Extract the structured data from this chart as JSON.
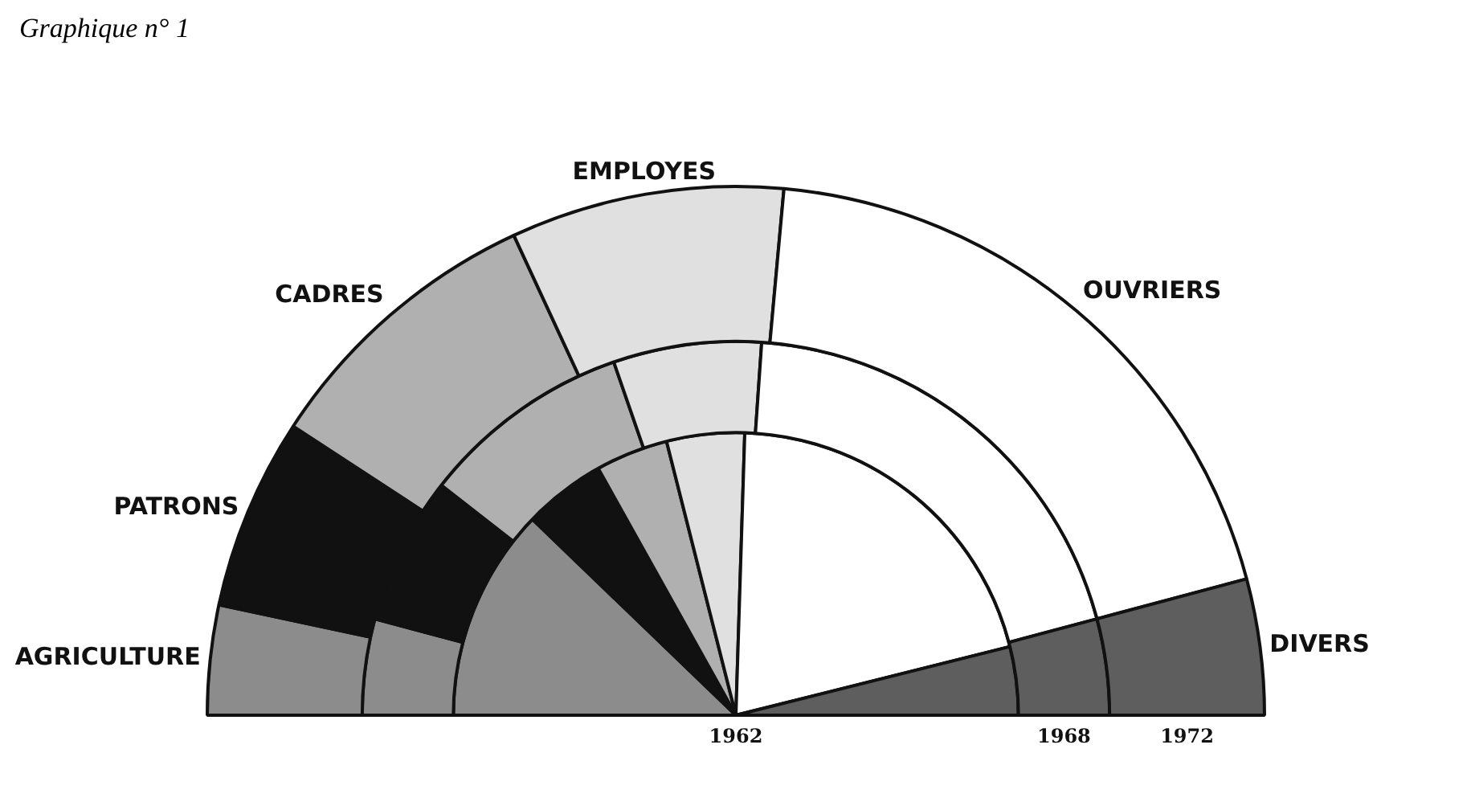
{
  "chart_data": {
    "type": "donut",
    "title": "Graphique n° 1",
    "categories": [
      "AGRICULTURE",
      "PATRONS",
      "CADRES",
      "EMPLOYES",
      "OUVRIERS",
      "DIVERS"
    ],
    "colors": [
      "#8c8c8c",
      "#111111",
      "#b0b0b0",
      "#e0e0e0",
      "#ffffff",
      "#5e5e5e"
    ],
    "series": [
      {
        "name": "1972",
        "values": [
          6.7,
          11.7,
          17.8,
          16.7,
          38.8,
          8.3
        ]
      },
      {
        "name": "1968",
        "values": [
          8.3,
          12.8,
          18.3,
          12.8,
          39.5,
          8.3
        ]
      },
      {
        "name": "1962",
        "values": [
          24.4,
          9.4,
          8.3,
          8.9,
          41.2,
          7.8
        ]
      }
    ],
    "legend": false
  }
}
